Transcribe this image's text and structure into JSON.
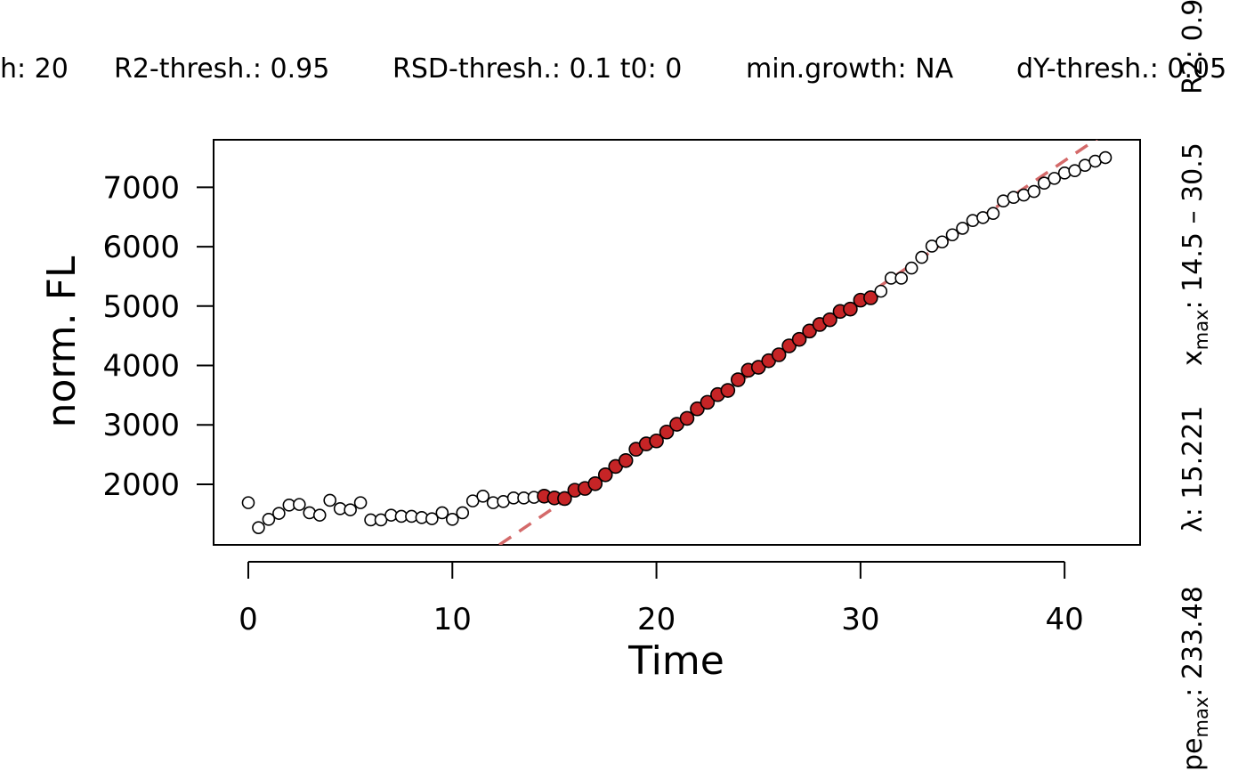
{
  "header": {
    "window": "h: 20",
    "r2_thresh": "R2-thresh.: 0.95",
    "rsd_thresh": "RSD-thresh.: 0.1 t0: 0",
    "min_growth": "min.growth: NA",
    "dy_thresh": "dY-thresh.: 0.05"
  },
  "side_annotations": {
    "r2": "R2: 0.9",
    "x_max": "x",
    "x_max_sub": "max",
    "x_max_value": ": 14.5 – 30.5",
    "lambda": "λ: 15.221",
    "slope": "pe",
    "slope_sub": "max",
    "slope_value": ": 233.48"
  },
  "colors": {
    "fit_point": "#c62426",
    "fit_line": "#d46a6a",
    "open_point": "#ffffff",
    "stroke": "#000000"
  },
  "chart_data": {
    "type": "scatter",
    "xlabel": "Time",
    "ylabel": "norm. FL",
    "x_ticks": [
      0,
      10,
      20,
      30,
      40
    ],
    "y_ticks": [
      2000,
      3000,
      4000,
      5000,
      6000,
      7000
    ],
    "xlim": [
      -1.7,
      43.7
    ],
    "ylim": [
      980,
      7800
    ],
    "legend": "none",
    "grid": false,
    "fit_window": [
      14.5,
      30.5
    ],
    "fit_line": {
      "slope": 233.48,
      "lag": 12.3,
      "y_at_lag": 980
    },
    "points": {
      "x": [
        0,
        0.5,
        1,
        1.5,
        2,
        2.5,
        3,
        3.5,
        4,
        4.5,
        5,
        5.5,
        6,
        6.5,
        7,
        7.5,
        8,
        8.5,
        9,
        9.5,
        10,
        10.5,
        11,
        11.5,
        12,
        12.5,
        13,
        13.5,
        14,
        14.5,
        15,
        15.5,
        16,
        16.5,
        17,
        17.5,
        18,
        18.5,
        19,
        19.5,
        20,
        20.5,
        21,
        21.5,
        22,
        22.5,
        23,
        23.5,
        24,
        24.5,
        25,
        25.5,
        26,
        26.5,
        27,
        27.5,
        28,
        28.5,
        29,
        29.5,
        30,
        30.5,
        31,
        31.5,
        32,
        32.5,
        33,
        33.5,
        34,
        34.5,
        35,
        35.5,
        36,
        36.5,
        37,
        37.5,
        38,
        38.5,
        39,
        39.5,
        40,
        40.5,
        41,
        41.5,
        42
      ],
      "y": [
        1690,
        1270,
        1410,
        1510,
        1650,
        1660,
        1520,
        1480,
        1730,
        1590,
        1570,
        1690,
        1400,
        1400,
        1480,
        1460,
        1460,
        1440,
        1420,
        1520,
        1410,
        1520,
        1720,
        1800,
        1690,
        1710,
        1770,
        1770,
        1780,
        1800,
        1770,
        1760,
        1900,
        1930,
        2010,
        2160,
        2300,
        2400,
        2590,
        2680,
        2730,
        2880,
        3010,
        3110,
        3270,
        3380,
        3510,
        3580,
        3760,
        3920,
        3970,
        4080,
        4180,
        4330,
        4440,
        4580,
        4690,
        4770,
        4910,
        4950,
        5100,
        5140,
        5250,
        5470,
        5470,
        5640,
        5820,
        6010,
        6080,
        6200,
        6310,
        6440,
        6490,
        6560,
        6770,
        6830,
        6870,
        6930,
        7070,
        7150,
        7240,
        7280,
        7370,
        7440,
        7500
      ],
      "in_fit": [
        false,
        false,
        false,
        false,
        false,
        false,
        false,
        false,
        false,
        false,
        false,
        false,
        false,
        false,
        false,
        false,
        false,
        false,
        false,
        false,
        false,
        false,
        false,
        false,
        false,
        false,
        false,
        false,
        false,
        true,
        true,
        true,
        true,
        true,
        true,
        true,
        true,
        true,
        true,
        true,
        true,
        true,
        true,
        true,
        true,
        true,
        true,
        true,
        true,
        true,
        true,
        true,
        true,
        true,
        true,
        true,
        true,
        true,
        true,
        true,
        true,
        true,
        false,
        false,
        false,
        false,
        false,
        false,
        false,
        false,
        false,
        false,
        false,
        false,
        false,
        false,
        false,
        false,
        false,
        false,
        false,
        false,
        false,
        false,
        false
      ]
    }
  }
}
